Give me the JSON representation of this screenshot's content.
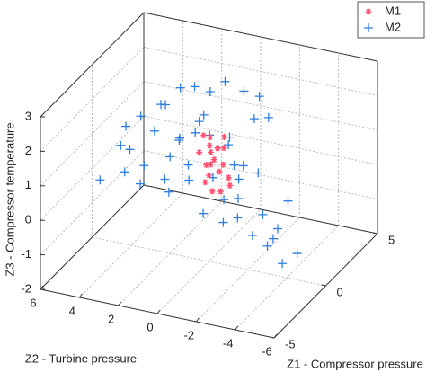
{
  "chart_data": {
    "type": "scatter3d",
    "xlabel": "Z1 - Compressor pressure",
    "ylabel": "Z2 - Turbine pressure",
    "zlabel": "Z3 - Compressor temperature",
    "xlim": [
      -5,
      5
    ],
    "xticks": [
      -5,
      0,
      5
    ],
    "ylim": [
      -6,
      6
    ],
    "yticks": [
      -6,
      -4,
      -2,
      0,
      2,
      4,
      6
    ],
    "zlim": [
      -2,
      3
    ],
    "zticks": [
      -2,
      -1,
      0,
      1,
      2,
      3
    ],
    "grid": true,
    "legend": "upper right",
    "series": [
      {
        "name": "M2",
        "color": "#2f7fe0",
        "marker": "plus",
        "x": [
          -2,
          -1,
          0,
          1,
          0.5,
          -1.5,
          2,
          1.5,
          -0.5,
          0,
          1,
          0.5,
          1,
          0,
          -0.5,
          1.5,
          0.5,
          -1,
          -2,
          -2.5,
          -3,
          -1,
          0,
          2,
          2.5,
          1,
          -1,
          0,
          1,
          0,
          2,
          3,
          -1.5,
          -2,
          0.5,
          -0.5,
          1.5,
          0.5,
          -0.5,
          2,
          1,
          -1,
          1,
          0,
          -2.5,
          2.5,
          -1.5,
          0.5,
          1.5,
          -0.5
        ],
        "y": [
          3,
          4,
          3.5,
          2,
          1,
          2,
          1,
          -1,
          0,
          -1,
          -2,
          -2.5,
          -3,
          -3,
          -2.5,
          -2.5,
          -3.5,
          -2,
          1,
          3,
          4,
          3,
          2,
          0,
          -1,
          0.5,
          1,
          0.5,
          -1,
          -1.5,
          -2,
          -1,
          -1,
          0,
          2.5,
          4,
          1.5,
          -0.5,
          -1,
          -3,
          -4,
          0.5,
          3,
          1.5,
          2,
          0.5,
          -0.5,
          -1.5,
          -0.5,
          2
        ],
        "z": [
          1.5,
          1.2,
          1.8,
          2.5,
          2.8,
          2,
          2.2,
          2.6,
          2.4,
          1.5,
          0.5,
          -0.5,
          -1,
          -1.2,
          -0.8,
          -1.5,
          -1.8,
          -0.2,
          0.5,
          1,
          0.8,
          0.2,
          0.8,
          1,
          1.5,
          1.3,
          1.7,
          2,
          0.2,
          0,
          1.8,
          2,
          1,
          1.4,
          2.1,
          1.6,
          1.1,
          -0.3,
          -0.6,
          -0.5,
          -1.6,
          0.6,
          1.9,
          1.4,
          1.3,
          2.4,
          -0.1,
          0.8,
          0.4,
          0.3
        ]
      },
      {
        "name": "M1",
        "color": "#ff4d6d",
        "marker": "asterisk",
        "x": [
          0.5,
          1,
          0,
          0.5,
          1,
          0,
          0.8,
          0.2,
          1.2,
          0.6,
          -0.2,
          0.4,
          0.9,
          0.3,
          1.1,
          0.7,
          0,
          0.5,
          1.3,
          0.1
        ],
        "y": [
          0,
          0.5,
          0,
          -0.5,
          0,
          0.5,
          -0.3,
          0.3,
          0.2,
          0.6,
          -0.2,
          -0.8,
          -0.6,
          0.1,
          -0.2,
          0.2,
          -0.6,
          0.4,
          0.6,
          -0.4
        ],
        "z": [
          0.8,
          1,
          0.5,
          1.2,
          0.3,
          1.1,
          0.6,
          0.2,
          0.9,
          1.4,
          0.9,
          0.4,
          0,
          1.5,
          1.3,
          -0.2,
          0.1,
          0.6,
          0.7,
          1.3
        ]
      }
    ]
  }
}
